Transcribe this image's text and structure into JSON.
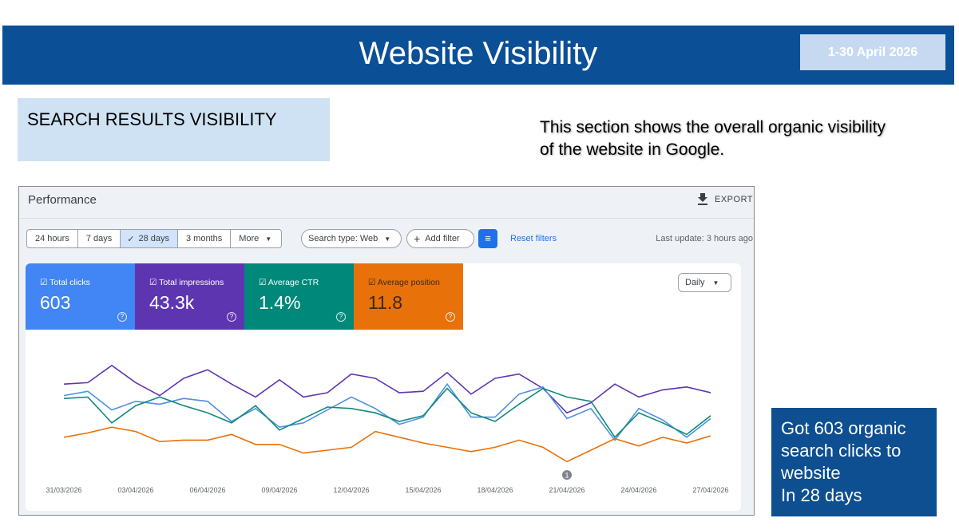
{
  "header": {
    "title": "Website Visibility",
    "date_range": "1-30 April 2026"
  },
  "section": {
    "label": "SEARCH RESULTS VISIBILITY",
    "description": [
      "This section shows the overall organic visibility",
      "of the website in Google."
    ]
  },
  "performance": {
    "title": "Performance",
    "export": "EXPORT",
    "ranges": [
      "24 hours",
      "7 days",
      "28 days",
      "3 months",
      "More"
    ],
    "search_type": "Search type: Web",
    "add_filter": "Add filter",
    "reset_filters": "Reset filters",
    "last_update": "Last update: 3 hours ago",
    "granularity": "Daily",
    "metrics": [
      {
        "label": "Total clicks",
        "value": "603"
      },
      {
        "label": "Total impressions",
        "value": "43.3k"
      },
      {
        "label": "Average CTR",
        "value": "1.4%"
      },
      {
        "label": "Average position",
        "value": "11.8"
      }
    ],
    "chart_data": {
      "type": "line",
      "categories": [
        "31/03/2026",
        null,
        null,
        "03/04/2026",
        null,
        null,
        "06/04/2026",
        null,
        null,
        "09/04/2026",
        null,
        null,
        "12/04/2026",
        null,
        null,
        "15/04/2026",
        null,
        null,
        "18/04/2026",
        null,
        null,
        "21/04/2026",
        null,
        null,
        "24/04/2026",
        null,
        null,
        "27/04/2026"
      ],
      "ylim": [
        0,
        100
      ],
      "series": [
        {
          "name": "Total impressions",
          "color": "#5e35b1",
          "values": [
            66,
            67,
            79,
            67,
            58,
            70,
            76,
            66,
            57,
            69,
            57,
            60,
            73,
            70,
            60,
            61,
            74,
            59,
            70,
            73,
            63,
            46,
            53,
            66,
            57,
            62,
            64,
            60
          ]
        },
        {
          "name": "Total clicks",
          "color": "#4f8fe6",
          "values": [
            58,
            61,
            48,
            54,
            52,
            56,
            54,
            40,
            49,
            36,
            39,
            48,
            57,
            49,
            38,
            43,
            66,
            43,
            43,
            59,
            64,
            42,
            49,
            27,
            49,
            41,
            29,
            42
          ]
        },
        {
          "name": "Average CTR",
          "color": "#12897b",
          "values": [
            56,
            57,
            39,
            51,
            57,
            51,
            46,
            39,
            51,
            34,
            42,
            50,
            49,
            46,
            40,
            44,
            63,
            46,
            40,
            52,
            63,
            57,
            54,
            29,
            46,
            39,
            31,
            44
          ]
        },
        {
          "name": "Average position",
          "color": "#e8710a",
          "values": [
            29,
            32,
            36,
            33,
            26,
            27,
            27,
            31,
            24,
            24,
            18,
            20,
            22,
            33,
            29,
            25,
            22,
            19,
            22,
            27,
            22,
            12,
            20,
            28,
            23,
            29,
            25,
            30
          ]
        }
      ],
      "annotation": {
        "x": "21/04/2026",
        "label": "1"
      }
    }
  },
  "callout": {
    "lines": [
      "Got 603 organic",
      "search clicks to",
      "website",
      "In 28 days"
    ]
  }
}
